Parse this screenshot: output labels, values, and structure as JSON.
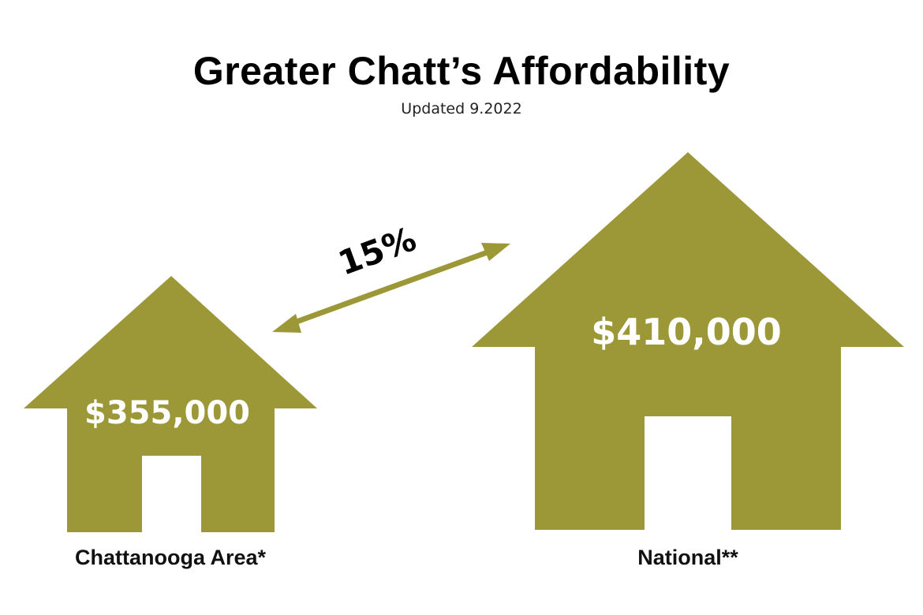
{
  "chart_data": {
    "type": "bar",
    "title": "Greater Chatt’s Affordability",
    "subtitle": "Updated 9.2022",
    "categories": [
      "Chattanooga Area*",
      "National**"
    ],
    "values": [
      355000,
      410000
    ],
    "value_labels": [
      "$355,000",
      "$410,000"
    ],
    "difference_label": "15%",
    "color": "#9c9838"
  }
}
